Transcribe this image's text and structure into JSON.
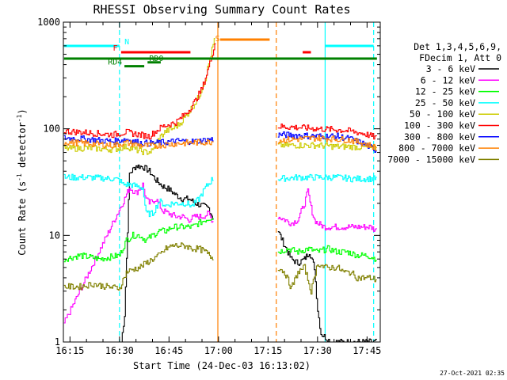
{
  "chart_data": {
    "type": "line",
    "title": "RHESSI Observing Summary Count Rates",
    "xlabel": "Start Time (24-Dec-03 16:13:02)",
    "ylabel_parts": [
      "Count Rate (s",
      "-1",
      " detector",
      "-1",
      ")"
    ],
    "yscale": "log",
    "ylim": [
      1,
      1000
    ],
    "xlim": [
      13.0,
      109.0
    ],
    "x_unit": "minutes after 16:00",
    "xticks": [
      {
        "value": 15,
        "label": "16:15"
      },
      {
        "value": 30,
        "label": "16:30"
      },
      {
        "value": 45,
        "label": "16:45"
      },
      {
        "value": 60,
        "label": "17:00"
      },
      {
        "value": 75,
        "label": "17:15"
      },
      {
        "value": 90,
        "label": "17:30"
      },
      {
        "value": 105,
        "label": "17:45"
      }
    ],
    "yticks": [
      {
        "value": 1,
        "label": "1"
      },
      {
        "value": 10,
        "label": "10"
      },
      {
        "value": 100,
        "label": "100"
      },
      {
        "value": 1000,
        "label": "1000"
      }
    ],
    "legend_header": [
      "Det 1,3,4,5,6,9,",
      "FDecim 1, Att 0"
    ],
    "series": [
      {
        "name": "3 - 6 keV",
        "color": "#000000",
        "seg1": [
          [
            30.5,
            1.0
          ],
          [
            31.5,
            1.8
          ],
          [
            33,
            38
          ],
          [
            35,
            45
          ],
          [
            37,
            44
          ],
          [
            39,
            40
          ],
          [
            41,
            33
          ],
          [
            43,
            29
          ],
          [
            45,
            27
          ],
          [
            47,
            24
          ],
          [
            49,
            22
          ],
          [
            51,
            22
          ],
          [
            53,
            20
          ],
          [
            55,
            19
          ],
          [
            57,
            18
          ],
          [
            58.5,
            14
          ]
        ],
        "seg2": [
          [
            78,
            11
          ],
          [
            80,
            8
          ],
          [
            82,
            6
          ],
          [
            84,
            5.5
          ],
          [
            86,
            6
          ],
          [
            87.5,
            7
          ],
          [
            89,
            5
          ],
          [
            90,
            2
          ],
          [
            91,
            1.2
          ],
          [
            94,
            1.0
          ],
          [
            108,
            1.0
          ]
        ]
      },
      {
        "name": "6 - 12 keV",
        "color": "#ff00ff",
        "seg1": [
          [
            13.2,
            1.5
          ],
          [
            31.5,
            22
          ],
          [
            33,
            28
          ],
          [
            35,
            25
          ],
          [
            37,
            30
          ],
          [
            38,
            22
          ],
          [
            39,
            20
          ],
          [
            41,
            22
          ],
          [
            43,
            17
          ],
          [
            45,
            16
          ],
          [
            47,
            15
          ],
          [
            49,
            15
          ],
          [
            51,
            14
          ],
          [
            53,
            15
          ],
          [
            55,
            15
          ],
          [
            57,
            16
          ],
          [
            58.5,
            13
          ]
        ],
        "seg2": [
          [
            78,
            15
          ],
          [
            80,
            14
          ],
          [
            82,
            13
          ],
          [
            84,
            14
          ],
          [
            86,
            20
          ],
          [
            87,
            26
          ],
          [
            88,
            18
          ],
          [
            89,
            14
          ],
          [
            90,
            13
          ],
          [
            92,
            12
          ],
          [
            94,
            12
          ],
          [
            96,
            12
          ],
          [
            98,
            12
          ],
          [
            100,
            12
          ],
          [
            102,
            12
          ],
          [
            104,
            12
          ],
          [
            106,
            12
          ],
          [
            108,
            11
          ]
        ]
      },
      {
        "name": "12 - 25 keV",
        "color": "#00ff00",
        "seg1": [
          [
            13.2,
            6
          ],
          [
            18,
            6.5
          ],
          [
            24,
            6
          ],
          [
            30,
            6.5
          ],
          [
            32,
            9
          ],
          [
            34,
            10
          ],
          [
            36,
            10
          ],
          [
            38,
            9
          ],
          [
            40,
            10
          ],
          [
            42,
            11
          ],
          [
            44,
            11
          ],
          [
            46,
            12
          ],
          [
            48,
            12
          ],
          [
            50,
            12
          ],
          [
            52,
            12
          ],
          [
            54,
            13
          ],
          [
            56,
            14
          ],
          [
            58.5,
            15
          ]
        ],
        "seg2": [
          [
            78,
            7
          ],
          [
            81,
            7.5
          ],
          [
            84,
            7
          ],
          [
            87,
            7.5
          ],
          [
            90,
            7
          ],
          [
            93,
            7.5
          ],
          [
            96,
            7
          ],
          [
            99,
            7
          ],
          [
            102,
            6.5
          ],
          [
            105,
            6.5
          ],
          [
            108,
            6
          ]
        ]
      },
      {
        "name": "25 - 50 keV",
        "color": "#00ffff",
        "seg1": [
          [
            13.2,
            35
          ],
          [
            20,
            35
          ],
          [
            28,
            34
          ],
          [
            30,
            33
          ],
          [
            31,
            30
          ],
          [
            33,
            30
          ],
          [
            35,
            29
          ],
          [
            37,
            28
          ],
          [
            38,
            16
          ],
          [
            40,
            16
          ],
          [
            42,
            21
          ],
          [
            44,
            19
          ],
          [
            46,
            20
          ],
          [
            48,
            20
          ],
          [
            50,
            20
          ],
          [
            52,
            19
          ],
          [
            54,
            22
          ],
          [
            56,
            28
          ],
          [
            58.5,
            35
          ]
        ],
        "seg2": [
          [
            78,
            34
          ],
          [
            84,
            35
          ],
          [
            90,
            35
          ],
          [
            96,
            35
          ],
          [
            100,
            34
          ],
          [
            104,
            34
          ],
          [
            108,
            34
          ]
        ]
      },
      {
        "name": "50 - 100 keV",
        "color": "#cccc00",
        "seg1": [
          [
            13.2,
            65
          ],
          [
            20,
            66
          ],
          [
            28,
            64
          ],
          [
            32,
            68
          ],
          [
            36,
            62
          ],
          [
            38,
            60
          ],
          [
            40,
            62
          ],
          [
            42,
            82
          ],
          [
            44,
            95
          ],
          [
            46,
            100
          ],
          [
            48,
            110
          ],
          [
            50,
            130
          ],
          [
            52,
            160
          ],
          [
            54,
            200
          ],
          [
            56,
            300
          ],
          [
            58,
            550
          ],
          [
            59,
            750
          ]
        ],
        "seg2": [
          [
            78,
            70
          ],
          [
            84,
            70
          ],
          [
            90,
            70
          ],
          [
            96,
            68
          ],
          [
            100,
            68
          ],
          [
            104,
            67
          ],
          [
            108,
            65
          ]
        ]
      },
      {
        "name": "100 - 300 keV",
        "color": "#ff0000",
        "seg1": [
          [
            13.2,
            95
          ],
          [
            20,
            92
          ],
          [
            28,
            88
          ],
          [
            32,
            93
          ],
          [
            36,
            88
          ],
          [
            39,
            85
          ],
          [
            41,
            95
          ],
          [
            43,
            105
          ],
          [
            45,
            110
          ],
          [
            47,
            115
          ],
          [
            49,
            130
          ],
          [
            51,
            150
          ],
          [
            53,
            185
          ],
          [
            55,
            240
          ],
          [
            57,
            380
          ],
          [
            58.5,
            560
          ],
          [
            59.2,
            700
          ]
        ],
        "seg2": [
          [
            78,
            105
          ],
          [
            84,
            103
          ],
          [
            90,
            100
          ],
          [
            96,
            98
          ],
          [
            100,
            95
          ],
          [
            104,
            90
          ],
          [
            108,
            82
          ]
        ]
      },
      {
        "name": "300 - 800 keV",
        "color": "#0000ff",
        "seg1": [
          [
            13.2,
            82
          ],
          [
            20,
            80
          ],
          [
            28,
            76
          ],
          [
            32,
            80
          ],
          [
            36,
            74
          ],
          [
            40,
            73
          ],
          [
            44,
            75
          ],
          [
            48,
            77
          ],
          [
            52,
            76
          ],
          [
            56,
            78
          ],
          [
            58.5,
            80
          ]
        ],
        "seg2": [
          [
            78,
            88
          ],
          [
            84,
            87
          ],
          [
            90,
            85
          ],
          [
            96,
            85
          ],
          [
            100,
            80
          ],
          [
            104,
            72
          ],
          [
            108,
            62
          ]
        ]
      },
      {
        "name": "800 - 7000 keV",
        "color": "#ff8000",
        "seg1": [
          [
            13.2,
            75
          ],
          [
            20,
            73
          ],
          [
            28,
            70
          ],
          [
            32,
            74
          ],
          [
            36,
            70
          ],
          [
            40,
            69
          ],
          [
            44,
            71
          ],
          [
            48,
            73
          ],
          [
            52,
            74
          ],
          [
            56,
            75
          ],
          [
            58.5,
            76
          ]
        ],
        "seg2": [
          [
            78,
            78
          ],
          [
            84,
            80
          ],
          [
            90,
            82
          ],
          [
            96,
            80
          ],
          [
            100,
            78
          ],
          [
            104,
            73
          ],
          [
            108,
            66
          ]
        ]
      },
      {
        "name": "7000 - 15000 keV",
        "color": "#808000",
        "seg1": [
          [
            13.2,
            3.3
          ],
          [
            18,
            3.3
          ],
          [
            22,
            3.5
          ],
          [
            26,
            3.3
          ],
          [
            30,
            3.2
          ],
          [
            32,
            4.5
          ],
          [
            34,
            4.8
          ],
          [
            36,
            5
          ],
          [
            38,
            5.5
          ],
          [
            40,
            6
          ],
          [
            42,
            6.5
          ],
          [
            44,
            7.5
          ],
          [
            46,
            8
          ],
          [
            48,
            8
          ],
          [
            50,
            8
          ],
          [
            52,
            7.5
          ],
          [
            54,
            7.5
          ],
          [
            56,
            7
          ],
          [
            58.5,
            6
          ]
        ],
        "seg2": [
          [
            78,
            5
          ],
          [
            80,
            4.5
          ],
          [
            82,
            3.2
          ],
          [
            84,
            4.5
          ],
          [
            86,
            5
          ],
          [
            88,
            3
          ],
          [
            90,
            5.5
          ],
          [
            92,
            5
          ],
          [
            94,
            5
          ],
          [
            96,
            5
          ],
          [
            98,
            4.5
          ],
          [
            100,
            4.5
          ],
          [
            102,
            4
          ],
          [
            104,
            4
          ],
          [
            106,
            4
          ],
          [
            108,
            3.8
          ]
        ]
      }
    ],
    "vertical_lines": [
      {
        "x": 30.0,
        "color": "#00ffff",
        "style": "dashed"
      },
      {
        "x": 59.8,
        "color": "#ff8000",
        "style": "solid"
      },
      {
        "x": 77.5,
        "color": "#ff8000",
        "style": "dashed"
      },
      {
        "x": 92.3,
        "color": "#00ffff",
        "style": "solid"
      },
      {
        "x": 107.0,
        "color": "#00ffff",
        "style": "dashed"
      }
    ],
    "flag_bars": [
      {
        "label": "N",
        "color": "#00ffff",
        "x0": 13.2,
        "x1": 30.0,
        "level": 0,
        "label_x": 31.5
      },
      {
        "label": "N",
        "color": "#00ffff",
        "x0": 92.3,
        "x1": 107.0,
        "level": 0,
        "label_x": null
      },
      {
        "label": "S",
        "color": "#ff8000",
        "x0": 60.5,
        "x1": 75.5,
        "level": -1,
        "label_x": 59.0
      },
      {
        "label": "F",
        "color": "#ff0000",
        "x0": 30.5,
        "x1": 51.5,
        "level": 1,
        "label_x": 28.0
      },
      {
        "label": "F",
        "color": "#ff0000",
        "x0": 85.5,
        "x1": 88.0,
        "level": 1,
        "label_x": null
      },
      {
        "label": "",
        "color": "#008000",
        "x0": 13.2,
        "x1": 108.0,
        "level": 2,
        "label_x": null
      },
      {
        "label": "RD0",
        "color": "#008000",
        "x0": 38.5,
        "x1": 42.5,
        "level": 2.6,
        "label_x": 39.0
      },
      {
        "label": "RD4",
        "color": "#008000",
        "x0": 31.5,
        "x1": 37.5,
        "level": 3.2,
        "label_x": 26.5
      }
    ]
  },
  "footer": {
    "timestamp": "27-Oct-2021 02:35"
  }
}
